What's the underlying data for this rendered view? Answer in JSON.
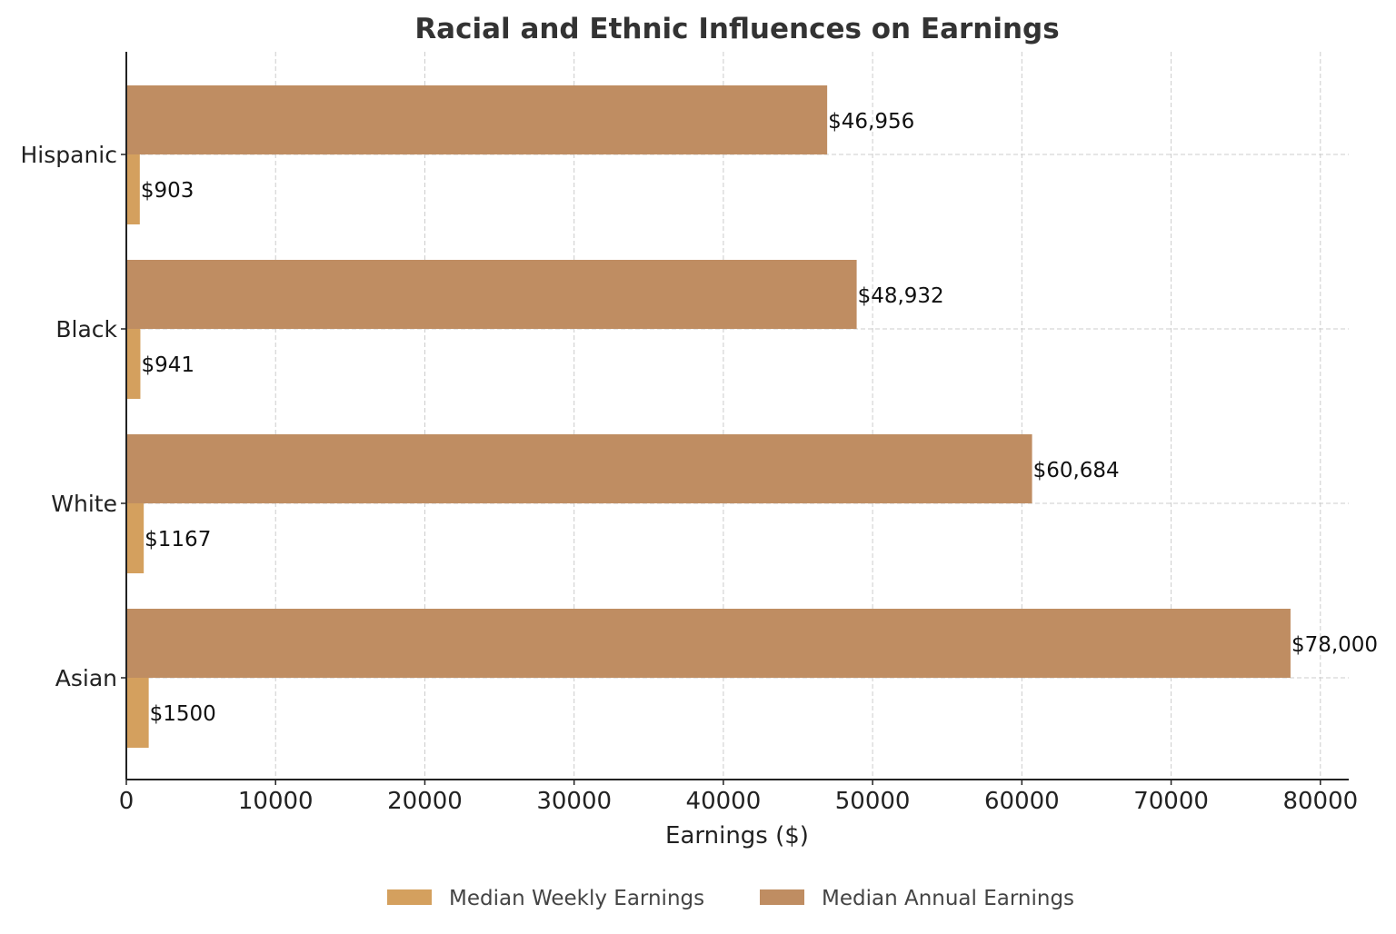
{
  "chart_data": {
    "type": "bar",
    "orientation": "horizontal",
    "title": "Racial and Ethnic Influences on Earnings",
    "xlabel": "Earnings ($)",
    "ylabel": "",
    "categories": [
      "Hispanic",
      "Black",
      "White",
      "Asian"
    ],
    "series": [
      {
        "name": "Median Weekly Earnings",
        "values": [
          903,
          941,
          1167,
          1500
        ],
        "labels": [
          "$903",
          "$941",
          "$1167",
          "$1500"
        ],
        "color": "#D4A05E"
      },
      {
        "name": "Median Annual Earnings",
        "values": [
          46956,
          48932,
          60684,
          78000
        ],
        "labels": [
          "$46,956",
          "$48,932",
          "$60,684",
          "$78,000"
        ],
        "color": "#BF8D62"
      }
    ],
    "xlim": [
      0,
      81900
    ],
    "xticks": [
      "0",
      "10000",
      "20000",
      "30000",
      "40000",
      "50000",
      "60000",
      "70000",
      "80000"
    ],
    "xtick_values": [
      0,
      10000,
      20000,
      30000,
      40000,
      50000,
      60000,
      70000,
      80000
    ],
    "grid": true,
    "legend_position": "bottom"
  }
}
